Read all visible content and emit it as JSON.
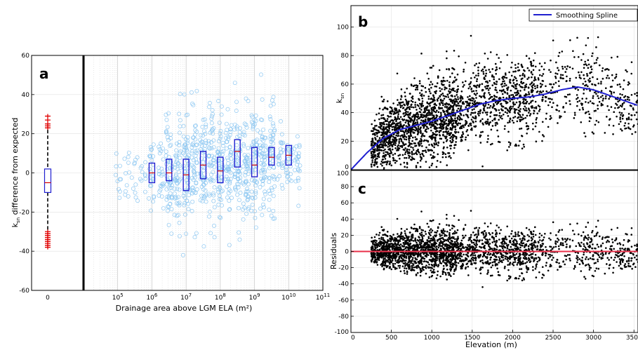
{
  "panel_labels": {
    "a": "a",
    "b": "b",
    "c": "c"
  },
  "chart_data": [
    {
      "id": "a",
      "type": "box",
      "title": "",
      "xlabel": "Drainage area above LGM ELA (m²)",
      "ylabel": "k_sn difference from expected",
      "ylabel_main": "k",
      "ylabel_sub": "sn",
      "ylabel_rest": " difference from expected",
      "xscale": "log",
      "xlim_exponents": [
        4,
        11
      ],
      "ylim": [
        -60,
        60
      ],
      "yticks": [
        -60,
        -40,
        -20,
        0,
        20,
        40,
        60
      ],
      "xticks": [
        {
          "base": "10",
          "exp": "5",
          "value": 100000
        },
        {
          "base": "10",
          "exp": "6",
          "value": 1000000
        },
        {
          "base": "10",
          "exp": "7",
          "value": 10000000
        },
        {
          "base": "10",
          "exp": "8",
          "value": 100000000
        },
        {
          "base": "10",
          "exp": "9",
          "value": 1000000000
        },
        {
          "base": "10",
          "exp": "10",
          "value": 10000000000
        },
        {
          "base": "10",
          "exp": "11",
          "value": 100000000000
        }
      ],
      "left_box": {
        "xtick": "0",
        "median": -5,
        "q1": -10,
        "q3": 2,
        "whisker_low": -29,
        "whisker_high": 22,
        "outliers": [
          -38,
          -37,
          -36,
          -35,
          -34,
          -33,
          -32,
          -31,
          -30,
          23,
          24,
          25,
          27,
          29
        ]
      },
      "boxes": [
        {
          "log_x": 6.0,
          "median": 0,
          "q1": -5,
          "q3": 5
        },
        {
          "log_x": 6.5,
          "median": 0,
          "q1": -4,
          "q3": 7
        },
        {
          "log_x": 7.0,
          "median": -1,
          "q1": -9,
          "q3": 7
        },
        {
          "log_x": 7.5,
          "median": 4,
          "q1": -3,
          "q3": 11
        },
        {
          "log_x": 8.0,
          "median": 1,
          "q1": -5,
          "q3": 8
        },
        {
          "log_x": 8.5,
          "median": 11,
          "q1": 3,
          "q3": 17
        },
        {
          "log_x": 9.0,
          "median": 4,
          "q1": -2,
          "q3": 13
        },
        {
          "log_x": 9.5,
          "median": 8,
          "q1": 4,
          "q3": 13
        },
        {
          "log_x": 10.0,
          "median": 9,
          "q1": 4,
          "q3": 14
        }
      ],
      "scatter_style": "hollow light-blue circles",
      "colors": {
        "box": "#1f1fd0",
        "median": "#d40000",
        "outlier": "#e00000",
        "scatter": "#8ec8f2"
      }
    },
    {
      "id": "b",
      "type": "scatter",
      "ylabel": "k_sn",
      "ylabel_main": "k",
      "ylabel_sub": "sn",
      "xlim": [
        0,
        3550
      ],
      "ylim": [
        0,
        115
      ],
      "yticks": [
        0,
        20,
        40,
        60,
        80,
        100
      ],
      "xticks": [
        0,
        500,
        1000,
        1500,
        2000,
        2500,
        3000,
        3500
      ],
      "legend": {
        "entry": "Smoothing Spline",
        "placement": "top-right"
      },
      "spline": {
        "x": [
          0,
          200,
          400,
          600,
          800,
          1000,
          1200,
          1400,
          1600,
          1800,
          2000,
          2200,
          2400,
          2600,
          2800,
          3000,
          3200,
          3400,
          3550
        ],
        "y": [
          0,
          12,
          22,
          28,
          31,
          34,
          38,
          42,
          46,
          48.5,
          50,
          51,
          53,
          56,
          58,
          56,
          52,
          48,
          45
        ]
      },
      "colors": {
        "points": "#000000",
        "spline": "#1f1fd0"
      }
    },
    {
      "id": "c",
      "type": "scatter",
      "xlabel": "Elevation (m)",
      "ylabel": "Residuals",
      "xlim": [
        0,
        3550
      ],
      "ylim": [
        -100,
        100
      ],
      "yticks": [
        -100,
        -80,
        -60,
        -40,
        -20,
        0,
        20,
        40,
        60,
        80,
        100
      ],
      "xticks": [
        0,
        500,
        1000,
        1500,
        2000,
        2500,
        3000,
        3500
      ],
      "zero_line": 0,
      "colors": {
        "points": "#000000",
        "zero_line": "#e8304a"
      }
    }
  ]
}
